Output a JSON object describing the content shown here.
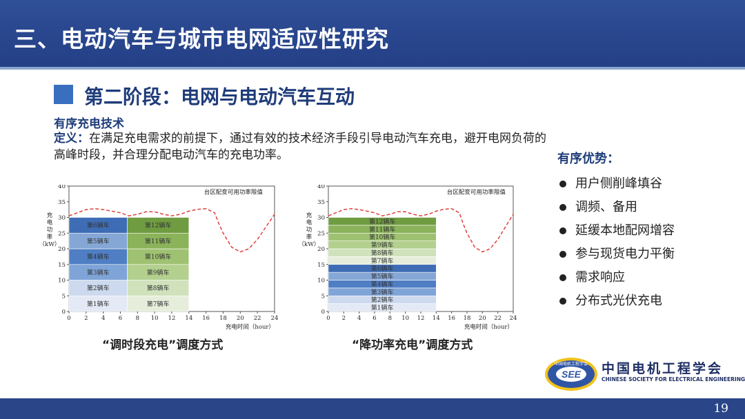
{
  "header": {
    "title": "三、电动汽车与城市电网适应性研究"
  },
  "section": {
    "title": "第二阶段：电网与电动汽车互动"
  },
  "subhead": "有序充电技术",
  "definition": {
    "label": "定义：",
    "text": "在满足充电需求的前提下，通过有效的技术经济手段引导电动汽车充电，避开电网负荷的高峰时段，并合理分配电动汽车的充电功率。"
  },
  "advantages": {
    "title": "有序优势：",
    "items": [
      "用户侧削峰填谷",
      "调频、备用",
      "延缓本地配网增容",
      "参与现货电力平衡",
      "需求响应",
      "分布式光伏充电"
    ]
  },
  "colors": {
    "header_bg": "#2a4689",
    "accent_blue": "#3a6fc0",
    "limit_line": "#e0403a"
  },
  "chart_data": [
    {
      "type": "area",
      "caption": "“调时段充电”调度方式",
      "ylabel": "充\n电\n功\n率\n（kW）",
      "xlabel": "充电时间（hour）",
      "annotation": "台区配变可用功率限值",
      "xlim": [
        0,
        24
      ],
      "ylim": [
        0,
        40
      ],
      "x_ticks": [
        0,
        2,
        4,
        6,
        8,
        10,
        12,
        14,
        16,
        18,
        20,
        22,
        24
      ],
      "y_ticks": [
        0,
        5,
        10,
        15,
        20,
        25,
        30,
        35,
        40
      ],
      "limit_curve": {
        "x": [
          0,
          1,
          2,
          3,
          4,
          5,
          6,
          7,
          8,
          9,
          10,
          11,
          12,
          13,
          14,
          15,
          16,
          17,
          17.5,
          18,
          19,
          20,
          21,
          22,
          23,
          24
        ],
        "y": [
          30.5,
          31.5,
          32.5,
          32.8,
          32.5,
          32,
          31.5,
          30.5,
          31,
          31.8,
          31.8,
          31,
          30.5,
          31,
          32,
          32.6,
          32.8,
          31.5,
          28,
          25,
          20.5,
          19,
          20,
          23,
          27,
          31
        ]
      },
      "blocks": [
        {
          "label": "第1辆车",
          "x0": 0,
          "x1": 6.8,
          "y0": 0,
          "y1": 5,
          "color": "#e3eaf5"
        },
        {
          "label": "第2辆车",
          "x0": 0,
          "x1": 6.8,
          "y0": 5,
          "y1": 10,
          "color": "#ccd9ee"
        },
        {
          "label": "第3辆车",
          "x0": 0,
          "x1": 6.8,
          "y0": 10,
          "y1": 15,
          "color": "#7fa4d8"
        },
        {
          "label": "第4辆车",
          "x0": 0,
          "x1": 6.8,
          "y0": 15,
          "y1": 20,
          "color": "#4f7ec4"
        },
        {
          "label": "第5辆车",
          "x0": 0,
          "x1": 6.8,
          "y0": 20,
          "y1": 25,
          "color": "#85a7d6"
        },
        {
          "label": "第6辆车",
          "x0": 0,
          "x1": 6.8,
          "y0": 25,
          "y1": 30,
          "color": "#3e6db5"
        },
        {
          "label": "第7辆车",
          "x0": 6.8,
          "x1": 14,
          "y0": 0,
          "y1": 5,
          "color": "#e6eedb"
        },
        {
          "label": "第8辆车",
          "x0": 6.8,
          "x1": 14,
          "y0": 5,
          "y1": 10,
          "color": "#d0e2bb"
        },
        {
          "label": "第9辆车",
          "x0": 6.8,
          "x1": 14,
          "y0": 10,
          "y1": 15,
          "color": "#b3d08e"
        },
        {
          "label": "第10辆车",
          "x0": 6.8,
          "x1": 14,
          "y0": 15,
          "y1": 20,
          "color": "#9fc272"
        },
        {
          "label": "第11辆车",
          "x0": 6.8,
          "x1": 14,
          "y0": 20,
          "y1": 25,
          "color": "#8ab35a"
        },
        {
          "label": "第12辆车",
          "x0": 6.8,
          "x1": 14,
          "y0": 25,
          "y1": 30,
          "color": "#6f9c41"
        }
      ]
    },
    {
      "type": "area",
      "caption": "“降功率充电”调度方式",
      "ylabel": "充\n电\n功\n率\n（kW）",
      "xlabel": "充电时间（hour）",
      "annotation": "台区配变可用功率限值",
      "xlim": [
        0,
        24
      ],
      "ylim": [
        0,
        40
      ],
      "x_ticks": [
        0,
        2,
        4,
        6,
        8,
        10,
        12,
        14,
        16,
        18,
        20,
        22,
        24
      ],
      "y_ticks": [
        0,
        5,
        10,
        15,
        20,
        25,
        30,
        35,
        40
      ],
      "limit_curve": {
        "x": [
          0,
          1,
          2,
          3,
          4,
          5,
          6,
          7,
          8,
          9,
          10,
          11,
          12,
          13,
          14,
          15,
          16,
          17,
          17.5,
          18,
          19,
          20,
          21,
          22,
          23,
          24
        ],
        "y": [
          30.5,
          31.5,
          32.5,
          32.8,
          32.5,
          32,
          31.5,
          30.5,
          31,
          31.8,
          31.8,
          31,
          30.5,
          31,
          32,
          32.6,
          32.8,
          31.5,
          28,
          25,
          20.5,
          19,
          20,
          23,
          27,
          31
        ]
      },
      "blocks": [
        {
          "label": "第1辆车",
          "x0": 0,
          "x1": 14,
          "y0": 0,
          "y1": 2.5,
          "color": "#e3eaf5"
        },
        {
          "label": "第2辆车",
          "x0": 0,
          "x1": 14,
          "y0": 2.5,
          "y1": 5,
          "color": "#ccd9ee"
        },
        {
          "label": "第3辆车",
          "x0": 0,
          "x1": 14,
          "y0": 5,
          "y1": 7.5,
          "color": "#7fa4d8"
        },
        {
          "label": "第4辆车",
          "x0": 0,
          "x1": 14,
          "y0": 7.5,
          "y1": 10,
          "color": "#4f7ec4"
        },
        {
          "label": "第5辆车",
          "x0": 0,
          "x1": 14,
          "y0": 10,
          "y1": 12.5,
          "color": "#85a7d6"
        },
        {
          "label": "第6辆车",
          "x0": 0,
          "x1": 14,
          "y0": 12.5,
          "y1": 15,
          "color": "#3e6db5"
        },
        {
          "label": "第7辆车",
          "x0": 0,
          "x1": 14,
          "y0": 15,
          "y1": 17.5,
          "color": "#e6eedb"
        },
        {
          "label": "第8辆车",
          "x0": 0,
          "x1": 14,
          "y0": 17.5,
          "y1": 20,
          "color": "#d0e2bb"
        },
        {
          "label": "第9辆车",
          "x0": 0,
          "x1": 14,
          "y0": 20,
          "y1": 22.5,
          "color": "#b3d08e"
        },
        {
          "label": "第10辆车",
          "x0": 0,
          "x1": 14,
          "y0": 22.5,
          "y1": 25,
          "color": "#9fc272"
        },
        {
          "label": "第11辆车",
          "x0": 0,
          "x1": 14,
          "y0": 25,
          "y1": 27.5,
          "color": "#8ab35a"
        },
        {
          "label": "第12辆车",
          "x0": 0,
          "x1": 14,
          "y0": 27.5,
          "y1": 30,
          "color": "#6f9c41"
        }
      ]
    }
  ],
  "logo": {
    "badge_text": "SEE",
    "ring_text": "中国电机工程学会",
    "name_cn": "中国电机工程学会",
    "name_en": "CHINESE SOCIETY FOR ELECTRICAL ENGINEERING"
  },
  "footer": {
    "page_number": "19"
  }
}
